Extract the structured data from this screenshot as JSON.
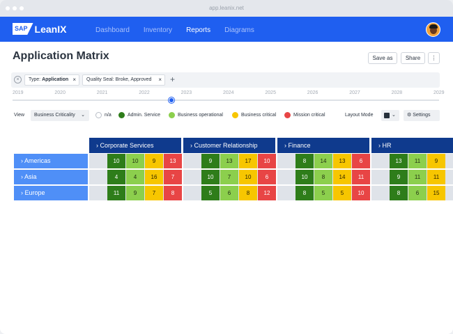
{
  "browser": {
    "url": "app.leanix.net"
  },
  "brand": {
    "sap": "SAP",
    "name": "LeanIX"
  },
  "nav": {
    "items": [
      "Dashboard",
      "Inventory",
      "Reports",
      "Diagrams"
    ],
    "active": "Reports"
  },
  "page": {
    "title": "Application Matrix",
    "save_as": "Save as",
    "share": "Share",
    "more": "⋮"
  },
  "filters": {
    "chips": [
      {
        "key": "Type:",
        "value": "Application"
      },
      {
        "key": "Quality Seal:",
        "value": "Broke, Approved"
      }
    ],
    "add": "+"
  },
  "timeline": {
    "years": [
      "2019",
      "2020",
      "2021",
      "2022",
      "2023",
      "2024",
      "2025",
      "2026",
      "2027",
      "2028",
      "2029"
    ],
    "selected_position": 0.37
  },
  "view": {
    "label": "View",
    "selected": "Business Criticality",
    "legend": [
      {
        "label": "n/a",
        "color": "#ffffff"
      },
      {
        "label": "Admin. Service",
        "color": "#2e7d1a"
      },
      {
        "label": "Business operational",
        "color": "#8ccf4d"
      },
      {
        "label": "Business critical",
        "color": "#f7c600"
      },
      {
        "label": "Mission critical",
        "color": "#e84545"
      }
    ],
    "layout_mode_label": "Layout Mode",
    "settings_label": "Settings"
  },
  "matrix": {
    "columns": [
      "Corporate Services",
      "Customer Relationship",
      "Finance",
      "HR"
    ],
    "rows": [
      {
        "name": "Americas",
        "values": [
          [
            10,
            10,
            9,
            13
          ],
          [
            9,
            13,
            17,
            10
          ],
          [
            8,
            14,
            13,
            6
          ],
          [
            13,
            11,
            9
          ]
        ]
      },
      {
        "name": "Asia",
        "values": [
          [
            4,
            4,
            16,
            7
          ],
          [
            10,
            7,
            10,
            6
          ],
          [
            10,
            8,
            14,
            11
          ],
          [
            9,
            11,
            11
          ]
        ]
      },
      {
        "name": "Europe",
        "values": [
          [
            11,
            9,
            7,
            8
          ],
          [
            5,
            6,
            8,
            12
          ],
          [
            8,
            5,
            5,
            10
          ],
          [
            8,
            6,
            15
          ]
        ]
      }
    ]
  }
}
